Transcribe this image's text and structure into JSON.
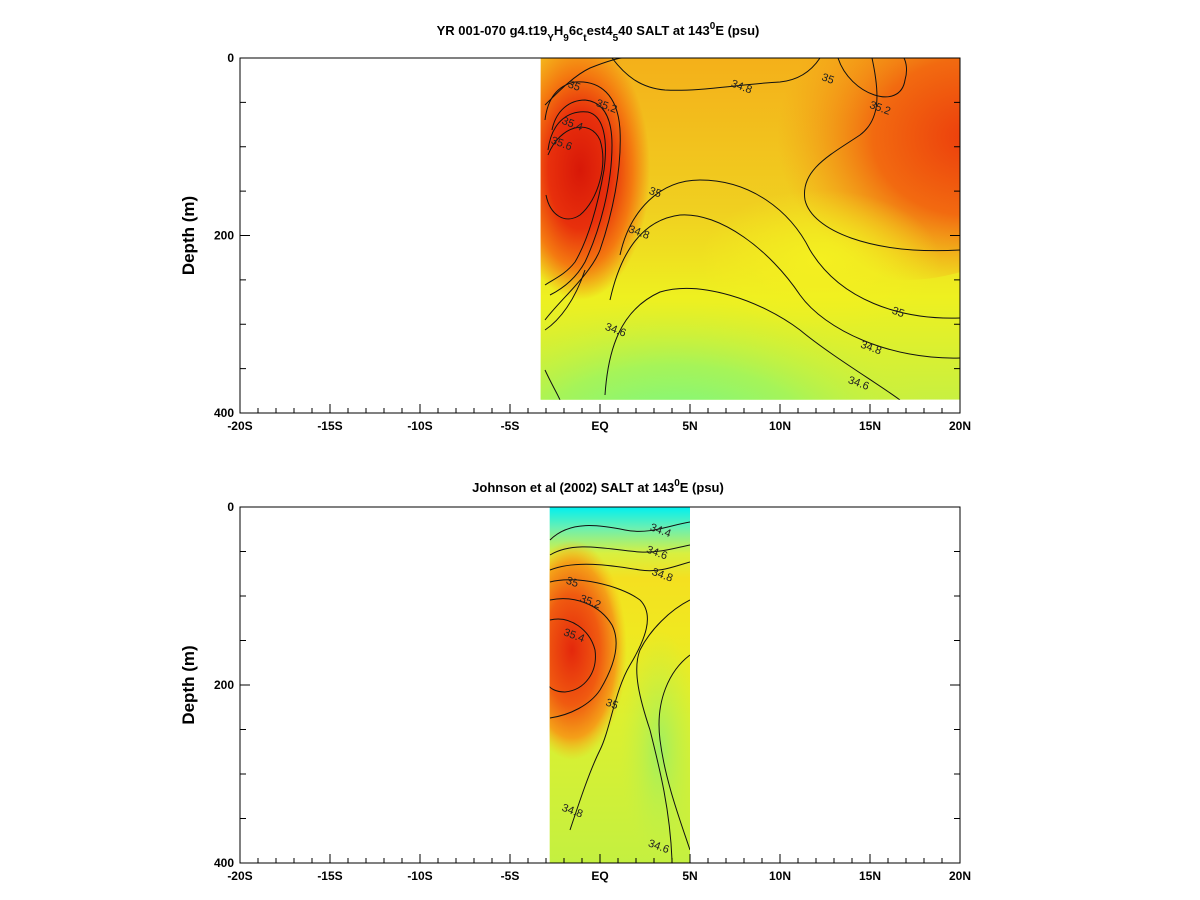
{
  "colors": {
    "high": "#e8300c",
    "mid_high": "#f47a10",
    "mid": "#f4b01a",
    "yellow": "#f0f020",
    "low": "#b8f040",
    "lower": "#6cf890",
    "lowest": "#00f4f0"
  },
  "chart_data": [
    {
      "type": "heatmap",
      "title": "YR 001-070 g4.t19",
      "title_parts": {
        "t_sub": "Y",
        "h_base": "H",
        "h_sub": "9",
        "c_base": "6c",
        "c_sub": "t",
        "est_base": "est4",
        "est_sub": "5",
        "rest": "40 SALT at 143",
        "deg": "0",
        "units": "E (psu)"
      },
      "ylabel": "Depth (m)",
      "x_ticklabels": [
        "-20S",
        "-15S",
        "-10S",
        "-5S",
        "EQ",
        "5N",
        "10N",
        "15N",
        "20N"
      ],
      "x_ticks": [
        -20,
        -15,
        -10,
        -5,
        0,
        5,
        10,
        15,
        20
      ],
      "y_ticklabels": [
        "0",
        "200",
        "400"
      ],
      "y_ticks": [
        0,
        200,
        400
      ],
      "xlim": [
        -20,
        20
      ],
      "ylim": [
        400,
        0
      ],
      "data_extent": {
        "x": [
          -3.3,
          20
        ],
        "y": [
          0,
          385
        ]
      },
      "contour_labels": [
        {
          "text": "35",
          "x": -1.5,
          "y": 35
        },
        {
          "text": "35.4",
          "x": -1.6,
          "y": 78
        },
        {
          "text": "35.2",
          "x": 0.3,
          "y": 58
        },
        {
          "text": "35.6",
          "x": -2.2,
          "y": 100
        },
        {
          "text": "34.8",
          "x": 7.8,
          "y": 36
        },
        {
          "text": "35",
          "x": 12.6,
          "y": 27
        },
        {
          "text": "35.2",
          "x": 15.5,
          "y": 60
        },
        {
          "text": "35",
          "x": 3.0,
          "y": 155
        },
        {
          "text": "34.8",
          "x": 2.1,
          "y": 200
        },
        {
          "text": "34.6",
          "x": 0.8,
          "y": 310
        },
        {
          "text": "35",
          "x": 16.5,
          "y": 290
        },
        {
          "text": "34.8",
          "x": 15.0,
          "y": 330
        },
        {
          "text": "34.6",
          "x": 14.3,
          "y": 370
        }
      ]
    },
    {
      "type": "heatmap",
      "title": "Johnson et al (2002) SALT at 143",
      "title_parts": {
        "deg": "0",
        "units": "E (psu)"
      },
      "ylabel": "Depth (m)",
      "x_ticklabels": [
        "-20S",
        "-15S",
        "-10S",
        "-5S",
        "EQ",
        "5N",
        "10N",
        "15N",
        "20N"
      ],
      "x_ticks": [
        -20,
        -15,
        -10,
        -5,
        0,
        5,
        10,
        15,
        20
      ],
      "y_ticklabels": [
        "0",
        "200",
        "400"
      ],
      "y_ticks": [
        0,
        200,
        400
      ],
      "xlim": [
        -20,
        20
      ],
      "ylim": [
        400,
        0
      ],
      "data_extent": {
        "x": [
          -2.8,
          5
        ],
        "y": [
          0,
          400
        ]
      },
      "contour_labels": [
        {
          "text": "34.4",
          "x": 3.3,
          "y": 30
        },
        {
          "text": "34.6",
          "x": 3.1,
          "y": 55
        },
        {
          "text": "34.8",
          "x": 3.4,
          "y": 80
        },
        {
          "text": "35",
          "x": -1.6,
          "y": 88
        },
        {
          "text": "35.2",
          "x": -0.6,
          "y": 110
        },
        {
          "text": "35.4",
          "x": -1.5,
          "y": 148
        },
        {
          "text": "35",
          "x": 0.6,
          "y": 225
        },
        {
          "text": "34.8",
          "x": -1.6,
          "y": 345
        },
        {
          "text": "34.6",
          "x": 3.2,
          "y": 385
        }
      ]
    }
  ]
}
